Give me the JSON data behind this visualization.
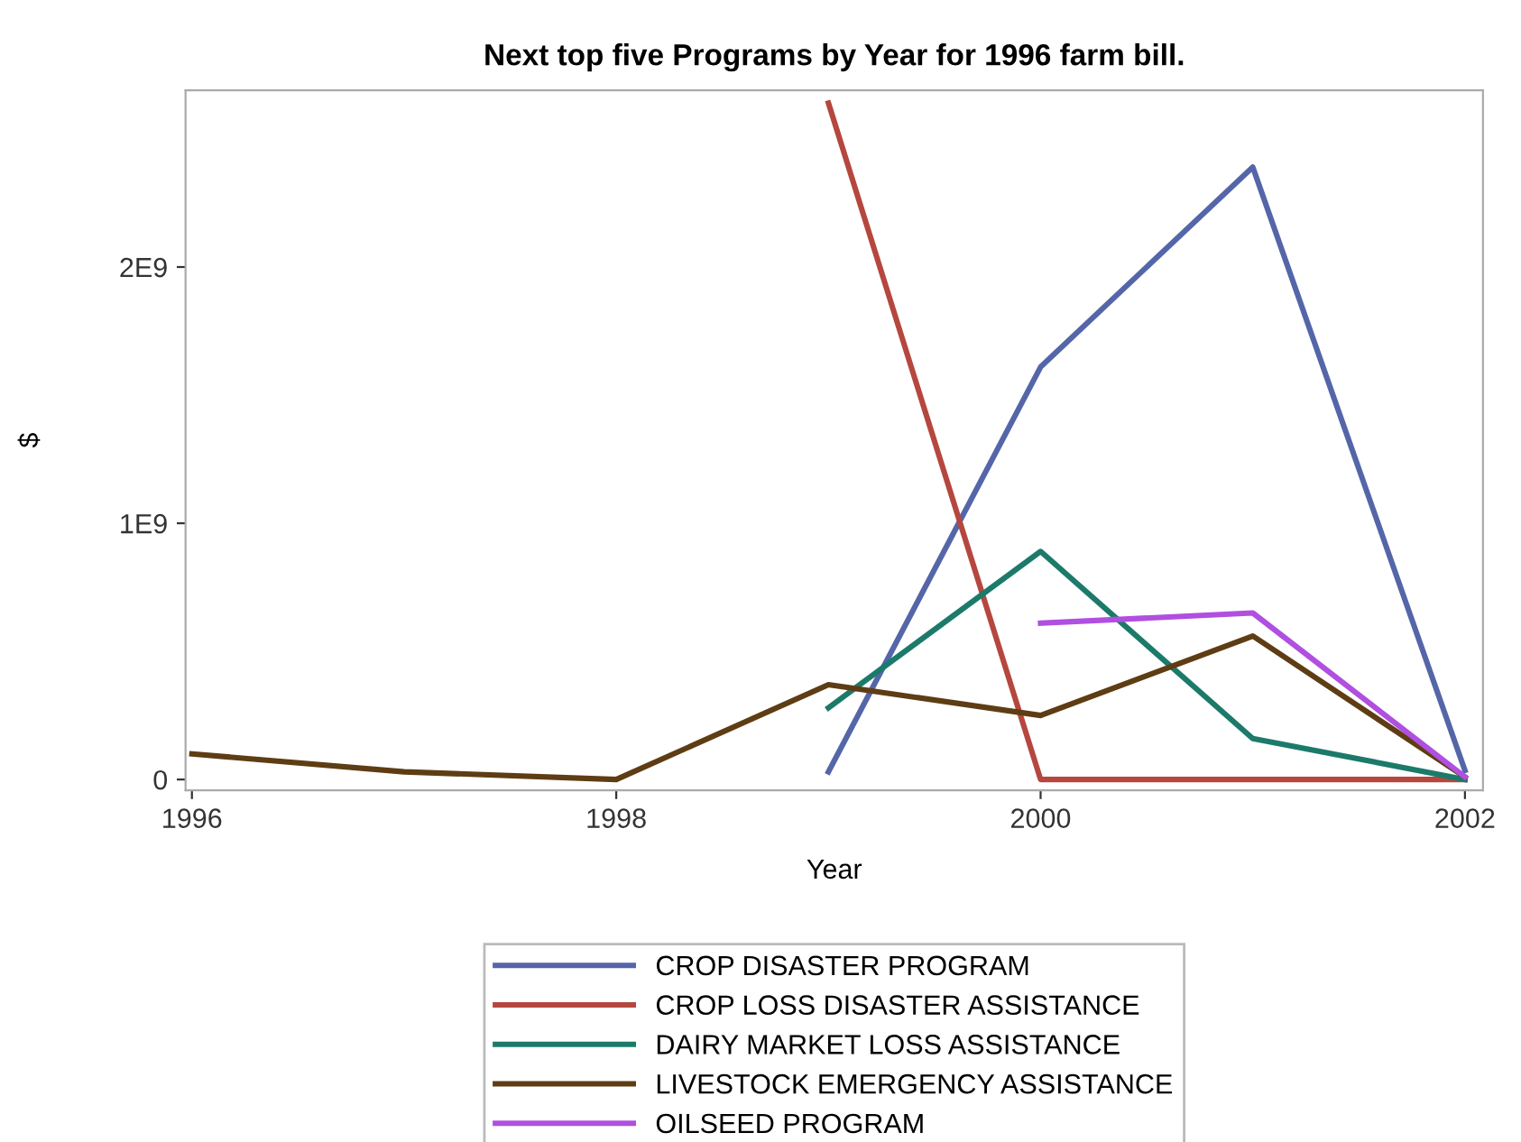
{
  "chart_data": {
    "type": "line",
    "title": "Next top five Programs by Year for 1996 farm bill.",
    "xlabel": "Year",
    "ylabel": "$",
    "xlim": [
      1995.97,
      2002.085
    ],
    "ylim": [
      -42000000,
      2690000000
    ],
    "xticks": [
      1996,
      1998,
      2000,
      2002
    ],
    "yticks": [
      {
        "value": 0,
        "label": "0"
      },
      {
        "value": 1000000000,
        "label": "1E9"
      },
      {
        "value": 2000000000,
        "label": "2E9"
      }
    ],
    "legend": "bottom",
    "grid": false,
    "line_style": "solid",
    "marker": "none",
    "series": [
      {
        "name": "CROP DISASTER PROGRAM",
        "color": "#5566a8",
        "x": [
          1999,
          2000,
          2001,
          2002
        ],
        "values": [
          30000000,
          1610000000,
          2390000000,
          35000000
        ]
      },
      {
        "name": "CROP LOSS DISASTER ASSISTANCE",
        "color": "#b5473f",
        "x": [
          1999,
          2000,
          2001,
          2002
        ],
        "values": [
          2640000000,
          0,
          0,
          0
        ]
      },
      {
        "name": "DAIRY MARKET LOSS ASSISTANCE",
        "color": "#1c7a6a",
        "x": [
          1999,
          2000,
          2001,
          2002
        ],
        "values": [
          280000000,
          890000000,
          160000000,
          0
        ]
      },
      {
        "name": "LIVESTOCK EMERGENCY ASSISTANCE",
        "color": "#5e3d14",
        "x": [
          1996,
          1997,
          1998,
          1999,
          2000,
          2001,
          2002
        ],
        "values": [
          100000000,
          30000000,
          0,
          370000000,
          250000000,
          560000000,
          10000000
        ]
      },
      {
        "name": "OILSEED PROGRAM",
        "color": "#b04fe0",
        "x": [
          2000,
          2001,
          2002
        ],
        "values": [
          610000000,
          650000000,
          10000000
        ]
      }
    ]
  }
}
